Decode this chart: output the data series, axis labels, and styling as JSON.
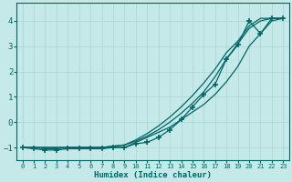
{
  "xlabel": "Humidex (Indice chaleur)",
  "ylabel": "",
  "xlim": [
    -0.5,
    23.5
  ],
  "ylim": [
    -1.5,
    4.7
  ],
  "yticks": [
    -1,
    0,
    1,
    2,
    3,
    4
  ],
  "xticks": [
    0,
    1,
    2,
    3,
    4,
    5,
    6,
    7,
    8,
    9,
    10,
    11,
    12,
    13,
    14,
    15,
    16,
    17,
    18,
    19,
    20,
    21,
    22,
    23
  ],
  "background_color": "#c5e8e8",
  "grid_color": "#b0d8d8",
  "line_color": "#006666",
  "series1_x": [
    0,
    1,
    2,
    3,
    4,
    5,
    6,
    7,
    8,
    9,
    10,
    11,
    12,
    13,
    14,
    15,
    16,
    17,
    18,
    19,
    20,
    21,
    22,
    23
  ],
  "series1_y": [
    -1.0,
    -1.0,
    -1.0,
    -1.0,
    -1.0,
    -1.0,
    -1.0,
    -1.0,
    -1.0,
    -1.0,
    -0.8,
    -0.6,
    -0.4,
    -0.2,
    0.1,
    0.4,
    0.7,
    1.1,
    1.6,
    2.2,
    3.0,
    3.5,
    4.0,
    4.1
  ],
  "series2_x": [
    0,
    1,
    2,
    3,
    4,
    5,
    6,
    7,
    8,
    9,
    10,
    11,
    12,
    13,
    14,
    15,
    16,
    17,
    18,
    19,
    20,
    21,
    22,
    23
  ],
  "series2_y": [
    -1.0,
    -1.0,
    -1.0,
    -1.0,
    -1.0,
    -1.0,
    -1.0,
    -1.0,
    -0.95,
    -0.9,
    -0.75,
    -0.55,
    -0.3,
    0.0,
    0.35,
    0.75,
    1.2,
    1.8,
    2.5,
    3.1,
    3.7,
    4.0,
    4.1,
    4.1
  ],
  "series3_x": [
    0,
    1,
    2,
    3,
    4,
    5,
    6,
    7,
    8,
    9,
    10,
    11,
    12,
    13,
    14,
    15,
    16,
    17,
    18,
    19,
    20,
    21,
    22,
    23
  ],
  "series3_y": [
    -1.0,
    -1.0,
    -1.05,
    -1.05,
    -1.0,
    -1.0,
    -1.0,
    -1.0,
    -0.95,
    -0.9,
    -0.7,
    -0.45,
    -0.15,
    0.2,
    0.6,
    1.05,
    1.55,
    2.1,
    2.75,
    3.2,
    3.8,
    4.1,
    4.1,
    4.1
  ],
  "marker_series_x": [
    0,
    1,
    2,
    3,
    4,
    5,
    6,
    7,
    8,
    9,
    10,
    11,
    12,
    13,
    14,
    15,
    16,
    17,
    18,
    19,
    20,
    21,
    22,
    23
  ],
  "marker_series_y": [
    -1.0,
    -1.05,
    -1.1,
    -1.1,
    -1.05,
    -1.05,
    -1.05,
    -1.05,
    -1.0,
    -1.0,
    -0.85,
    -0.8,
    -0.6,
    -0.3,
    0.1,
    0.6,
    1.1,
    1.5,
    2.5,
    3.05,
    4.0,
    3.5,
    4.1,
    4.1
  ],
  "font_family": "monospace"
}
